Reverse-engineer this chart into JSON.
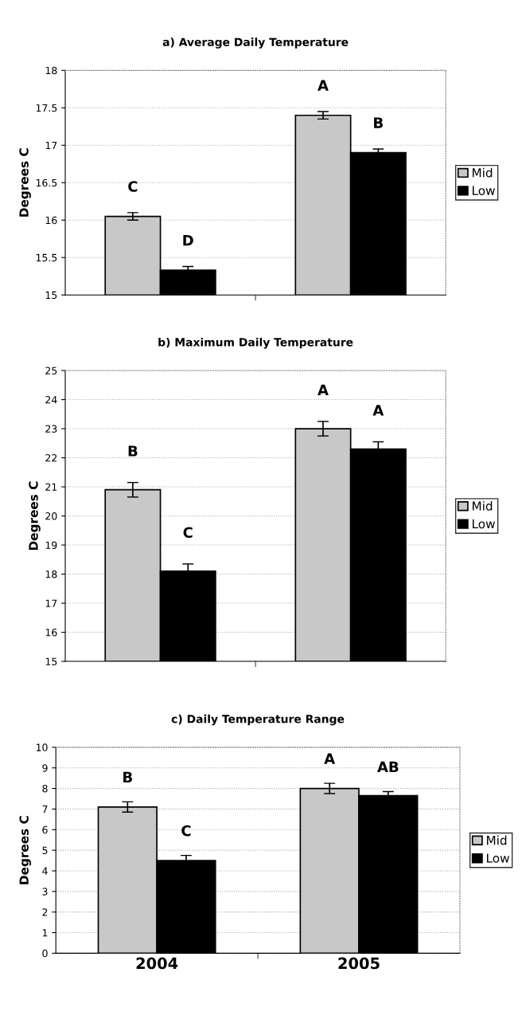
{
  "chart_data": [
    {
      "type": "bar",
      "title": "a) Average Daily Temperature",
      "ylabel": "Degrees C",
      "categories": [
        "2004",
        "2005"
      ],
      "ylim": [
        15,
        18
      ],
      "yticks": [
        15,
        15.5,
        16,
        16.5,
        17,
        17.5,
        18
      ],
      "grid": "y",
      "legend": "right",
      "tick_labels": "y",
      "series": [
        {
          "name": "Mid",
          "color": "#c8c8c8",
          "values": [
            16.05,
            17.4
          ],
          "errors": [
            0.05,
            0.05
          ],
          "value_labels": [
            "C",
            "A"
          ]
        },
        {
          "name": "Low",
          "color": "#000000",
          "values": [
            15.33,
            16.9
          ],
          "errors": [
            0.05,
            0.05
          ],
          "value_labels": [
            "D",
            "B"
          ]
        }
      ]
    },
    {
      "type": "bar",
      "title": "b) Maximum Daily Temperature",
      "ylabel": "Degrees C",
      "categories": [
        "2004",
        "2005"
      ],
      "ylim": [
        15,
        25
      ],
      "yticks": [
        15,
        16,
        17,
        18,
        19,
        20,
        21,
        22,
        23,
        24,
        25
      ],
      "grid": "y",
      "legend": "right",
      "tick_labels": "y",
      "series": [
        {
          "name": "Mid",
          "color": "#c8c8c8",
          "values": [
            20.9,
            23.0
          ],
          "errors": [
            0.25,
            0.25
          ],
          "value_labels": [
            "B",
            "A"
          ]
        },
        {
          "name": "Low",
          "color": "#000000",
          "values": [
            18.1,
            22.3
          ],
          "errors": [
            0.25,
            0.25
          ],
          "value_labels": [
            "C",
            "A"
          ]
        }
      ]
    },
    {
      "type": "bar",
      "title": "c) Daily Temperature Range",
      "ylabel": "Degrees C",
      "categories": [
        "2004",
        "2005"
      ],
      "ylim": [
        0,
        10
      ],
      "yticks": [
        0,
        1,
        2,
        3,
        4,
        5,
        6,
        7,
        8,
        9,
        10
      ],
      "grid": "y",
      "legend": "right",
      "series": [
        {
          "name": "Mid",
          "color": "#c8c8c8",
          "values": [
            7.1,
            8.0
          ],
          "errors": [
            0.25,
            0.25
          ],
          "value_labels": [
            "B",
            "A"
          ]
        },
        {
          "name": "Low",
          "color": "#000000",
          "values": [
            4.5,
            7.65
          ],
          "errors": [
            0.25,
            0.2
          ],
          "value_labels": [
            "C",
            "AB"
          ]
        }
      ]
    }
  ]
}
